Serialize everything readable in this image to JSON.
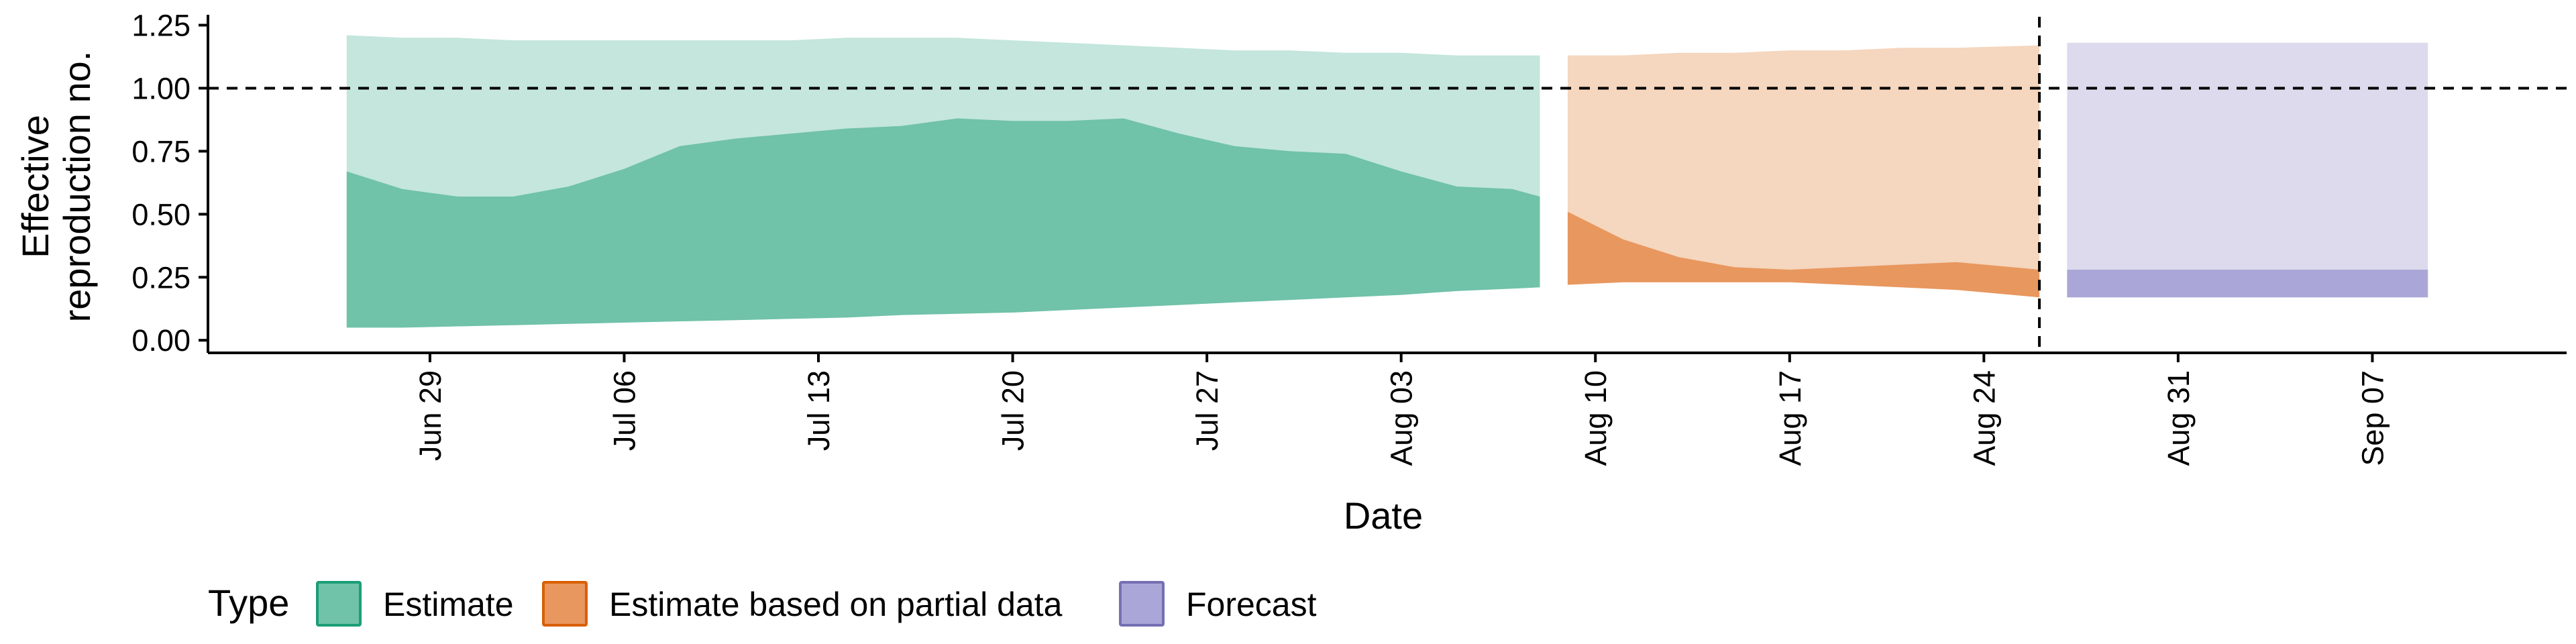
{
  "chart_data": {
    "type": "area",
    "xlabel": "Date",
    "ylabel": "Effective reproduction no.",
    "ylabel_lines": [
      "Effective",
      "reproduction no."
    ],
    "ylim": [
      -0.05,
      1.27
    ],
    "xlim": [
      "2020-06-21",
      "2020-09-14"
    ],
    "y_ticks": [
      "0.00",
      "0.25",
      "0.50",
      "0.75",
      "1.00",
      "1.25"
    ],
    "y_tick_values": [
      0,
      0.25,
      0.5,
      0.75,
      1.0,
      1.25
    ],
    "x_ticks": [
      {
        "date": "2020-06-29",
        "label": "Jun 29"
      },
      {
        "date": "2020-07-06",
        "label": "Jul 06"
      },
      {
        "date": "2020-07-13",
        "label": "Jul 13"
      },
      {
        "date": "2020-07-20",
        "label": "Jul 20"
      },
      {
        "date": "2020-07-27",
        "label": "Jul 27"
      },
      {
        "date": "2020-08-03",
        "label": "Aug 03"
      },
      {
        "date": "2020-08-10",
        "label": "Aug 10"
      },
      {
        "date": "2020-08-17",
        "label": "Aug 17"
      },
      {
        "date": "2020-08-24",
        "label": "Aug 24"
      },
      {
        "date": "2020-08-31",
        "label": "Aug 31"
      },
      {
        "date": "2020-09-07",
        "label": "Sep 07"
      }
    ],
    "reference_line_y": 1.0,
    "vertical_line_date": "2020-08-26",
    "grid": false,
    "legend": {
      "title": "Type",
      "position": "bottom",
      "entries": [
        "Estimate",
        "Estimate based on partial data",
        "Forecast"
      ]
    },
    "series": [
      {
        "name": "Estimate",
        "color_outer": "#c4e6dc",
        "color_inner": "#70c2a9",
        "x": [
          "2020-06-26",
          "2020-06-28",
          "2020-06-30",
          "2020-07-02",
          "2020-07-04",
          "2020-07-06",
          "2020-07-08",
          "2020-07-10",
          "2020-07-12",
          "2020-07-14",
          "2020-07-16",
          "2020-07-18",
          "2020-07-20",
          "2020-07-22",
          "2020-07-24",
          "2020-07-26",
          "2020-07-28",
          "2020-07-30",
          "2020-08-01",
          "2020-08-03",
          "2020-08-05",
          "2020-08-07",
          "2020-08-08"
        ],
        "outer_upper": [
          1.21,
          1.2,
          1.2,
          1.19,
          1.19,
          1.19,
          1.19,
          1.19,
          1.19,
          1.2,
          1.2,
          1.2,
          1.19,
          1.18,
          1.17,
          1.16,
          1.15,
          1.15,
          1.14,
          1.14,
          1.13,
          1.13,
          1.13
        ],
        "inner_upper": [
          0.67,
          0.6,
          0.57,
          0.57,
          0.61,
          0.68,
          0.77,
          0.8,
          0.82,
          0.84,
          0.85,
          0.88,
          0.87,
          0.87,
          0.88,
          0.82,
          0.77,
          0.75,
          0.74,
          0.67,
          0.61,
          0.6,
          0.57
        ],
        "inner_lower": [
          0.05,
          0.05,
          0.055,
          0.06,
          0.065,
          0.07,
          0.075,
          0.08,
          0.085,
          0.09,
          0.1,
          0.105,
          0.11,
          0.12,
          0.13,
          0.14,
          0.15,
          0.16,
          0.17,
          0.18,
          0.195,
          0.205,
          0.21
        ],
        "outer_lower": [
          0.05,
          0.05,
          0.055,
          0.06,
          0.065,
          0.07,
          0.075,
          0.08,
          0.085,
          0.09,
          0.1,
          0.105,
          0.11,
          0.12,
          0.13,
          0.14,
          0.15,
          0.16,
          0.17,
          0.18,
          0.195,
          0.205,
          0.21
        ]
      },
      {
        "name": "Estimate based on partial data",
        "color_outer": "#f5d6be",
        "color_inner": "#e8975e",
        "x": [
          "2020-08-09",
          "2020-08-11",
          "2020-08-13",
          "2020-08-15",
          "2020-08-17",
          "2020-08-19",
          "2020-08-21",
          "2020-08-23",
          "2020-08-26"
        ],
        "outer_upper": [
          1.13,
          1.13,
          1.14,
          1.14,
          1.15,
          1.15,
          1.16,
          1.16,
          1.17
        ],
        "inner_upper": [
          0.51,
          0.4,
          0.33,
          0.29,
          0.28,
          0.29,
          0.3,
          0.31,
          0.28
        ],
        "inner_lower": [
          0.22,
          0.23,
          0.23,
          0.23,
          0.23,
          0.22,
          0.21,
          0.2,
          0.17
        ],
        "outer_lower": [
          0.22,
          0.23,
          0.23,
          0.23,
          0.23,
          0.22,
          0.21,
          0.2,
          0.17
        ]
      },
      {
        "name": "Forecast",
        "color_outer": "#dcdaec",
        "color_inner": "#aaa6d7",
        "x": [
          "2020-08-27",
          "2020-09-09"
        ],
        "outer_upper": [
          1.18,
          1.18
        ],
        "inner_upper": [
          0.28,
          0.28
        ],
        "inner_lower": [
          0.17,
          0.17
        ],
        "outer_lower": [
          0.17,
          0.17
        ]
      }
    ]
  },
  "legend_colors": {
    "Estimate": {
      "fill": "#70c2a9",
      "stroke": "#1b9e77"
    },
    "Estimate based on partial data": {
      "fill": "#e8975e",
      "stroke": "#d95f02"
    },
    "Forecast": {
      "fill": "#aaa6d7",
      "stroke": "#7570b3"
    }
  }
}
